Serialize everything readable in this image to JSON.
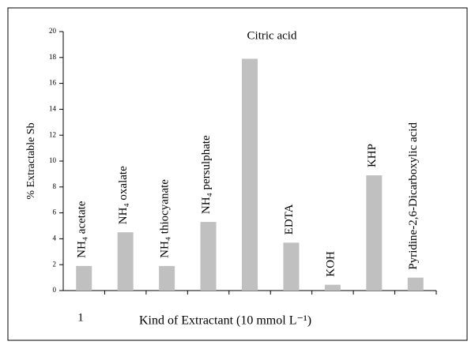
{
  "chart_data": {
    "type": "bar",
    "y_label": "% Extractable Sb",
    "x_label": "Kind of Extractant (10 mmol L⁻¹)",
    "x_tick_label": "1",
    "categories": [
      "NH₄ acetate",
      "NH₄ oxalate",
      "NH₄ thiocyanate",
      "NH₄ persulphate",
      "Citric acid",
      "EDTA",
      "KOH",
      "KHP",
      "Pyridine-2,6-Dicarboxylic acid"
    ],
    "values": [
      1.9,
      4.5,
      1.9,
      5.3,
      17.9,
      3.7,
      0.45,
      8.9,
      1.0
    ],
    "color": "#c0c0c0",
    "ylim": [
      0,
      20
    ],
    "yticks": [
      0,
      2,
      4,
      6,
      8,
      10,
      12,
      14,
      16,
      18,
      20
    ],
    "grid": false
  }
}
